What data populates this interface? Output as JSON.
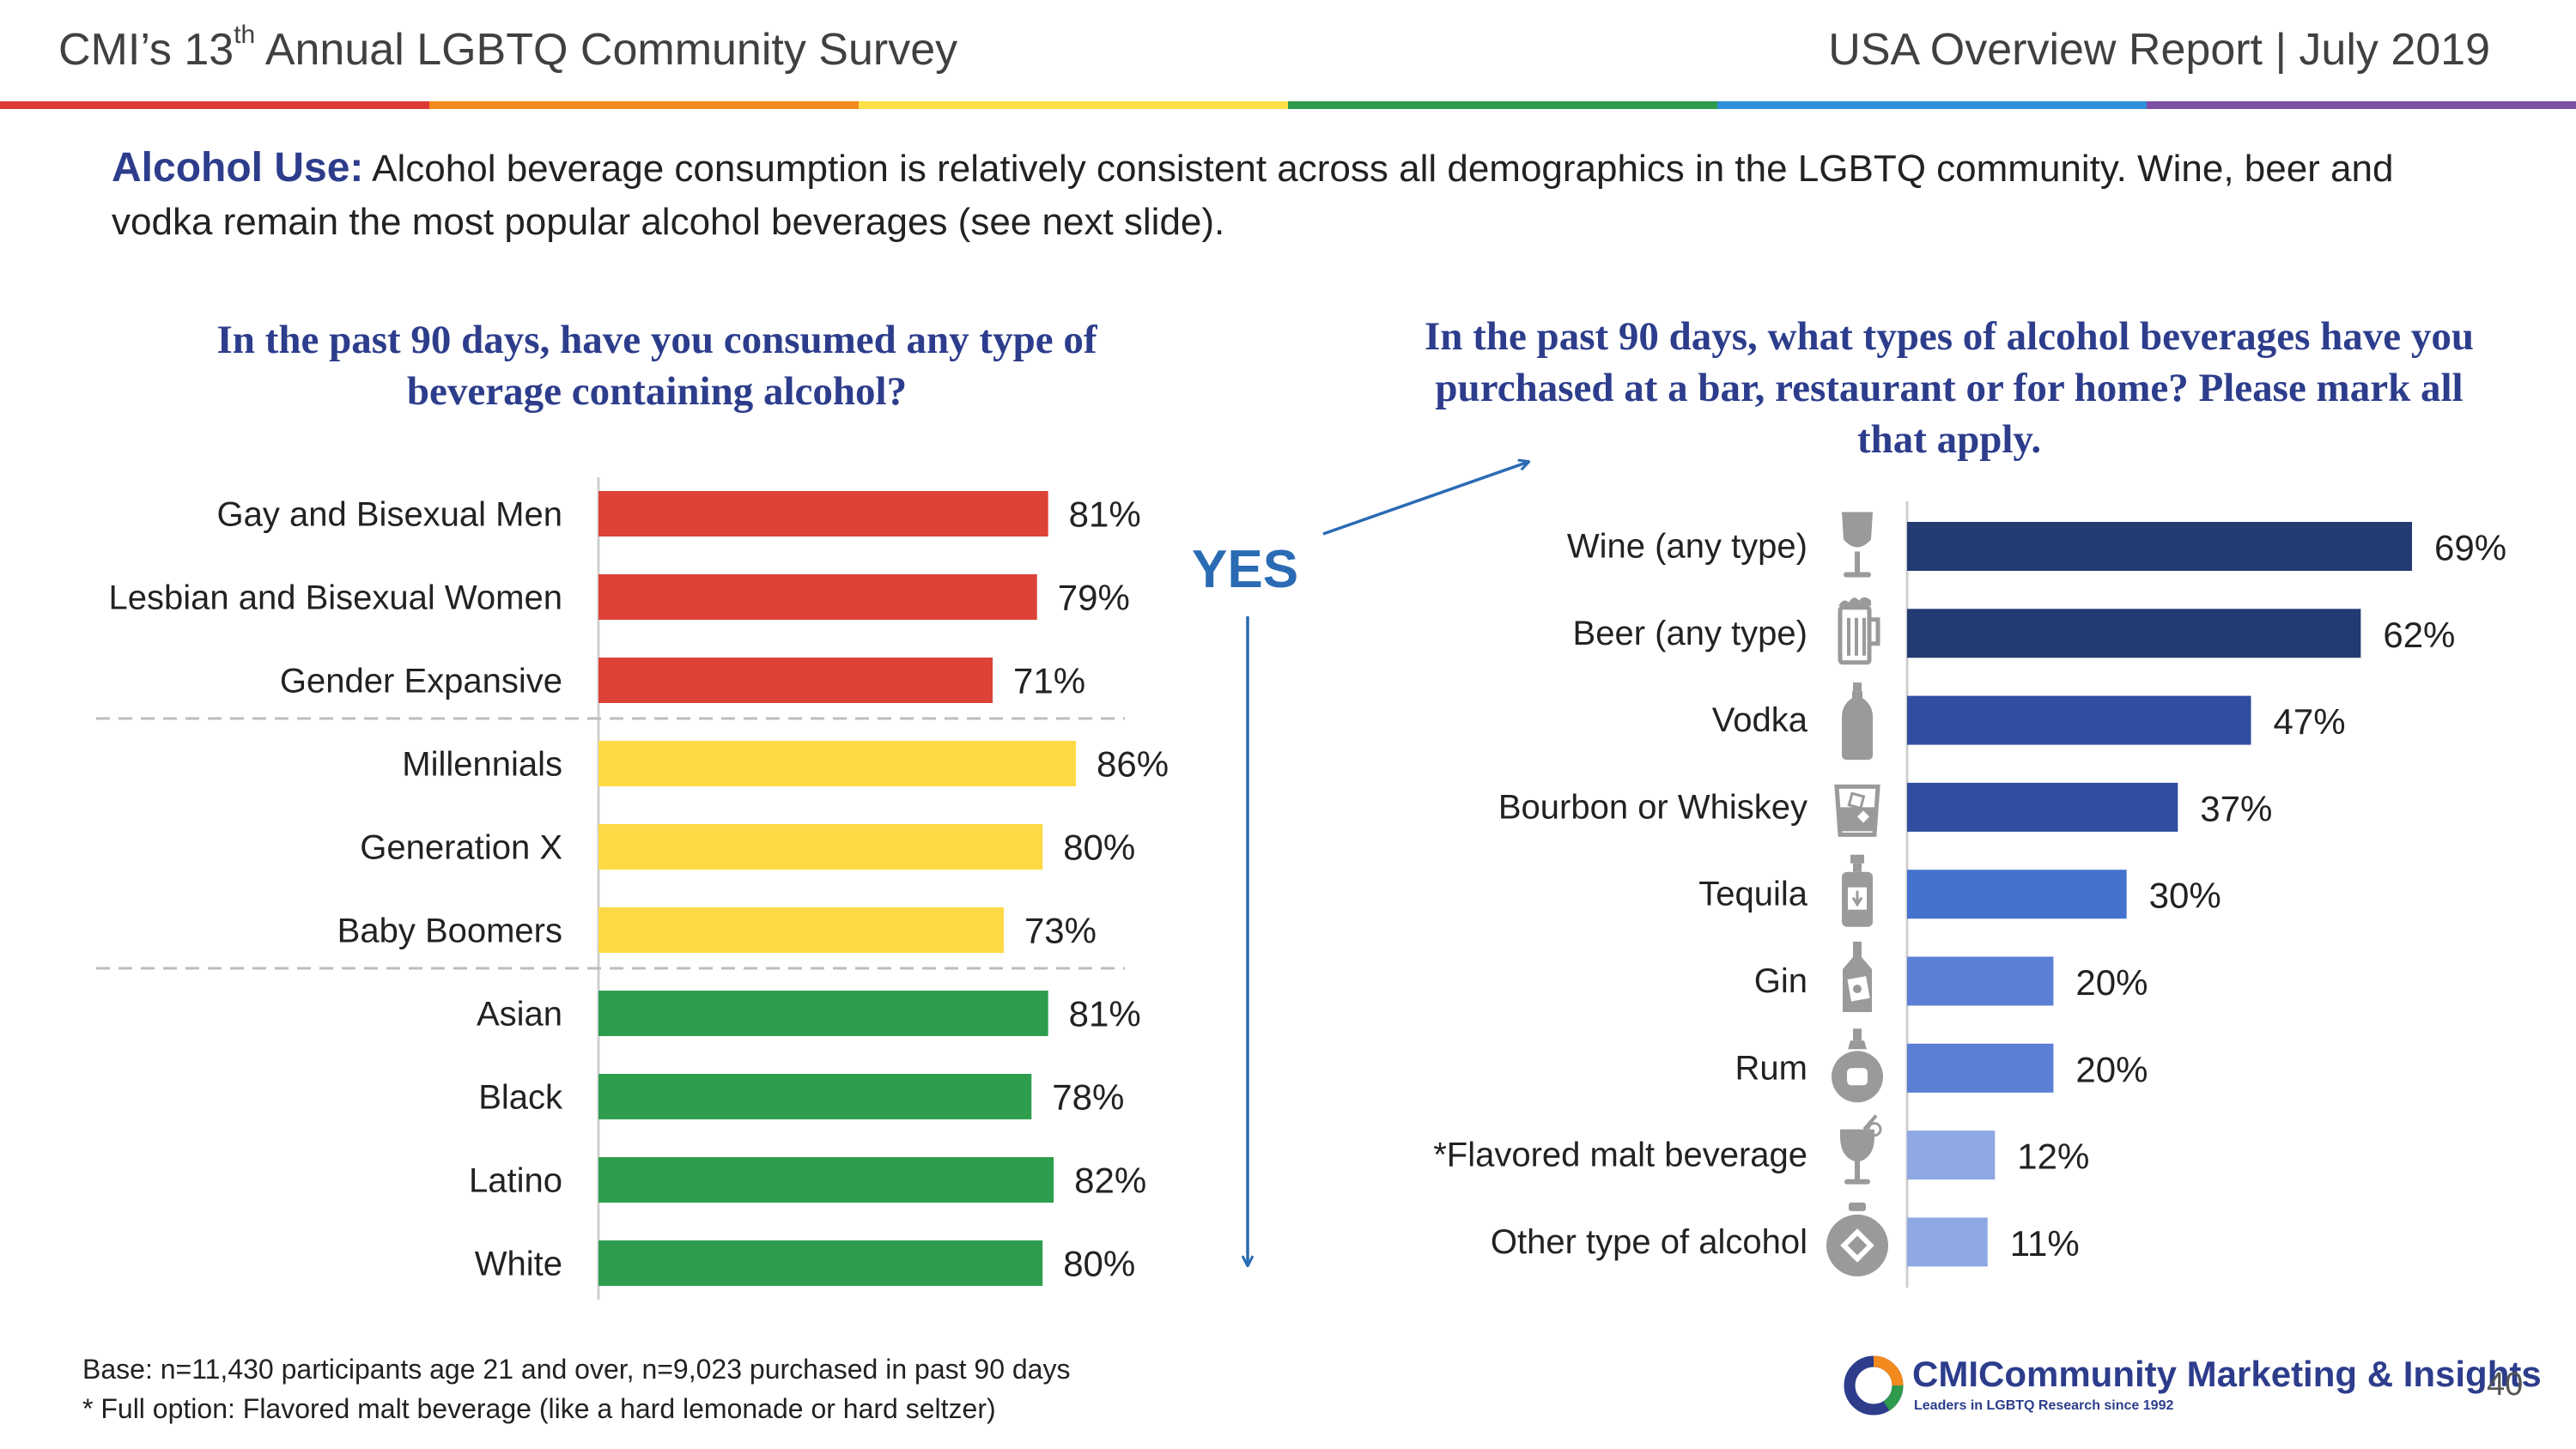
{
  "header": {
    "left_title_pre": "CMI’s 13",
    "left_title_sup": "th",
    "left_title_post": " Annual LGBTQ Community Survey",
    "right_title": "USA Overview Report | July 2019"
  },
  "rainbow_colors": [
    "#dc3b35",
    "#f28a1e",
    "#fde047",
    "#2f9a4b",
    "#2f8fd8",
    "#7b4fa3"
  ],
  "intro": {
    "lead": "Alcohol Use:",
    "text": " Alcohol beverage consumption is relatively consistent across all demographics in the LGBTQ community. Wine, beer and vodka remain the most popular alcohol beverages (see next slide)."
  },
  "connector": {
    "label": "YES"
  },
  "footnote": {
    "line1": "Base: n=11,430 participants age 21 and over, n=9,023 purchased in past 90 days",
    "line2": "* Full option:  Flavored malt beverage (like a hard lemonade or hard seltzer)"
  },
  "logo": {
    "cmi": "CMI",
    "name": "Community Marketing & Insights",
    "tagline": "Leaders in LGBTQ Research since 1992"
  },
  "page_number": "40",
  "chart_data": [
    {
      "type": "bar",
      "orientation": "horizontal",
      "title": "In the past 90 days, have you consumed any type of beverage containing alcohol?",
      "categories": [
        "Gay and Bisexual Men",
        "Lesbian and Bisexual Women",
        "Gender Expansive",
        "Millennials",
        "Generation X",
        "Baby Boomers",
        "Asian",
        "Black",
        "Latino",
        "White"
      ],
      "values": [
        81,
        79,
        71,
        86,
        80,
        73,
        81,
        78,
        82,
        80
      ],
      "value_labels": [
        "81%",
        "79%",
        "71%",
        "86%",
        "80%",
        "73%",
        "81%",
        "78%",
        "82%",
        "80%"
      ],
      "colors": [
        "#dc4236",
        "#dc4236",
        "#dc4236",
        "#fdda45",
        "#fdda45",
        "#fdda45",
        "#2e9e4e",
        "#2e9e4e",
        "#2e9e4e",
        "#2e9e4e"
      ],
      "groups": [
        "lgbtq",
        "lgbtq",
        "lgbtq",
        "generation",
        "generation",
        "generation",
        "ethnicity",
        "ethnicity",
        "ethnicity",
        "ethnicity"
      ],
      "unit": "%",
      "xlim": [
        0,
        100
      ]
    },
    {
      "type": "bar",
      "orientation": "horizontal",
      "title": "In the past 90 days, what types of alcohol beverages have you purchased at a bar, restaurant or for home?  Please mark all that apply.",
      "categories": [
        "Wine (any type)",
        "Beer (any type)",
        "Vodka",
        "Bourbon or Whiskey",
        "Tequila",
        "Gin",
        "Rum",
        "*Flavored malt beverage",
        "Other type of alcohol"
      ],
      "values": [
        69,
        62,
        47,
        37,
        30,
        20,
        20,
        12,
        11
      ],
      "value_labels": [
        "69%",
        "62%",
        "47%",
        "37%",
        "30%",
        "20%",
        "20%",
        "12%",
        "11%"
      ],
      "colors": [
        "#243a73",
        "#243a73",
        "#2f4ea0",
        "#2f4ea0",
        "#4572cf",
        "#5a7fd4",
        "#5a7fd4",
        "#8ea8e4",
        "#8ea8e4"
      ],
      "icons": [
        "wine-glass-icon",
        "beer-mug-icon",
        "vodka-bottle-icon",
        "whiskey-glass-icon",
        "tequila-bottle-icon",
        "gin-bottle-icon",
        "rum-bottle-icon",
        "cocktail-glass-icon",
        "decanter-icon"
      ],
      "unit": "%",
      "xlim": [
        0,
        100
      ]
    }
  ]
}
